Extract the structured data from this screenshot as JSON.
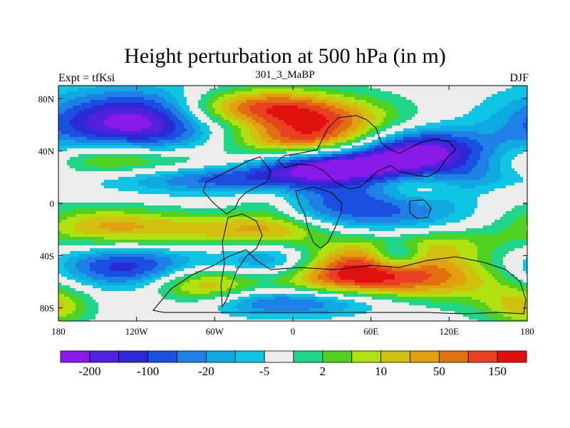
{
  "chart_data": {
    "type": "heatmap",
    "title": "Height perturbation at 500 hPa (in m)",
    "subtitle_left": "Expt = tfKsi",
    "subtitle_center": "301_3_MaBP",
    "subtitle_right": "DJF",
    "x_range": [
      -180,
      180
    ],
    "y_range": [
      -90,
      90
    ],
    "x_ticks": [
      {
        "value": -180,
        "label": "180"
      },
      {
        "value": -120,
        "label": "120W"
      },
      {
        "value": -60,
        "label": "60W"
      },
      {
        "value": 0,
        "label": "0"
      },
      {
        "value": 60,
        "label": "60E"
      },
      {
        "value": 120,
        "label": "120E"
      },
      {
        "value": 180,
        "label": "180"
      }
    ],
    "y_ticks": [
      {
        "value": 80,
        "label": "80N"
      },
      {
        "value": 40,
        "label": "40N"
      },
      {
        "value": 0,
        "label": "0"
      },
      {
        "value": -40,
        "label": "40S"
      },
      {
        "value": -80,
        "label": "80S"
      }
    ],
    "colorbar": {
      "colors": [
        "#8a18e8",
        "#5020dc",
        "#2c2ad4",
        "#1a50e0",
        "#1e80e4",
        "#10a8e0",
        "#10c4e4",
        "#ececec",
        "#20d488",
        "#50d020",
        "#b0e010",
        "#d0c010",
        "#e0a010",
        "#e07010",
        "#e84020",
        "#e01010"
      ],
      "labels": [
        {
          "boundary": 1,
          "text": "-200"
        },
        {
          "boundary": 3,
          "text": "-100"
        },
        {
          "boundary": 5,
          "text": "-20"
        },
        {
          "boundary": 7,
          "text": "-5"
        },
        {
          "boundary": 9,
          "text": "2"
        },
        {
          "boundary": 11,
          "text": "10"
        },
        {
          "boundary": 13,
          "text": "50"
        },
        {
          "boundary": 15,
          "text": "150"
        }
      ]
    },
    "features": [
      {
        "lon": -125,
        "lat": 60,
        "slon": 48,
        "slat": 18,
        "amp": -6.6
      },
      {
        "lon": -60,
        "lat": 72,
        "slon": 25,
        "slat": 10,
        "amp": 2.5
      },
      {
        "lon": -110,
        "lat": 30,
        "slon": 60,
        "slat": 9,
        "amp": 3.6
      },
      {
        "lon": -140,
        "lat": 40,
        "slon": 30,
        "slat": 10,
        "amp": 2.0
      },
      {
        "lon": 20,
        "lat": 62,
        "slon": 42,
        "slat": 14,
        "amp": 6.3
      },
      {
        "lon": 0,
        "lat": 48,
        "slon": 40,
        "slat": 7,
        "amp": 2.5
      },
      {
        "lon": -20,
        "lat": 75,
        "slon": 30,
        "slat": 10,
        "amp": 3.5
      },
      {
        "lon": 95,
        "lat": 40,
        "slon": 38,
        "slat": 12,
        "amp": -6.6
      },
      {
        "lon": 30,
        "lat": 28,
        "slon": 38,
        "slat": 8,
        "amp": -5.5
      },
      {
        "lon": -60,
        "lat": 20,
        "slon": 60,
        "slat": 8,
        "amp": -4.3
      },
      {
        "lon": 140,
        "lat": 15,
        "slon": 30,
        "slat": 12,
        "amp": -3.2
      },
      {
        "lon": 50,
        "lat": -5,
        "slon": 55,
        "slat": 18,
        "amp": -4.2
      },
      {
        "lon": 100,
        "lat": 12,
        "slon": 25,
        "slat": 8,
        "amp": 2.8
      },
      {
        "lon": 155,
        "lat": 8,
        "slon": 25,
        "slat": 10,
        "amp": 2.3
      },
      {
        "lon": -20,
        "lat": 0,
        "slon": 20,
        "slat": 10,
        "amp": 2.2
      },
      {
        "lon": -80,
        "lat": -20,
        "slon": 70,
        "slat": 10,
        "amp": 3.8
      },
      {
        "lon": -10,
        "lat": -20,
        "slon": 30,
        "slat": 8,
        "amp": 2.5
      },
      {
        "lon": -130,
        "lat": -50,
        "slon": 60,
        "slat": 12,
        "amp": -6.0
      },
      {
        "lon": -70,
        "lat": -62,
        "slon": 30,
        "slat": 12,
        "amp": 5.8
      },
      {
        "lon": -10,
        "lat": -45,
        "slon": 30,
        "slat": 10,
        "amp": -5.0
      },
      {
        "lon": 30,
        "lat": -50,
        "slon": 45,
        "slat": 15,
        "amp": 5.3
      },
      {
        "lon": 110,
        "lat": -55,
        "slon": 70,
        "slat": 15,
        "amp": 5.5
      },
      {
        "lon": 80,
        "lat": -40,
        "slon": 15,
        "slat": 8,
        "amp": -4.3
      },
      {
        "lon": 0,
        "lat": -75,
        "slon": 60,
        "slat": 8,
        "amp": -4.8
      },
      {
        "lon": 100,
        "lat": -30,
        "slon": 40,
        "slat": 8,
        "amp": 2.5
      },
      {
        "lon": -150,
        "lat": -15,
        "slon": 30,
        "slat": 10,
        "amp": 2.0
      },
      {
        "lon": 175,
        "lat": -80,
        "slon": 20,
        "slat": 10,
        "amp": 3.0
      }
    ]
  }
}
